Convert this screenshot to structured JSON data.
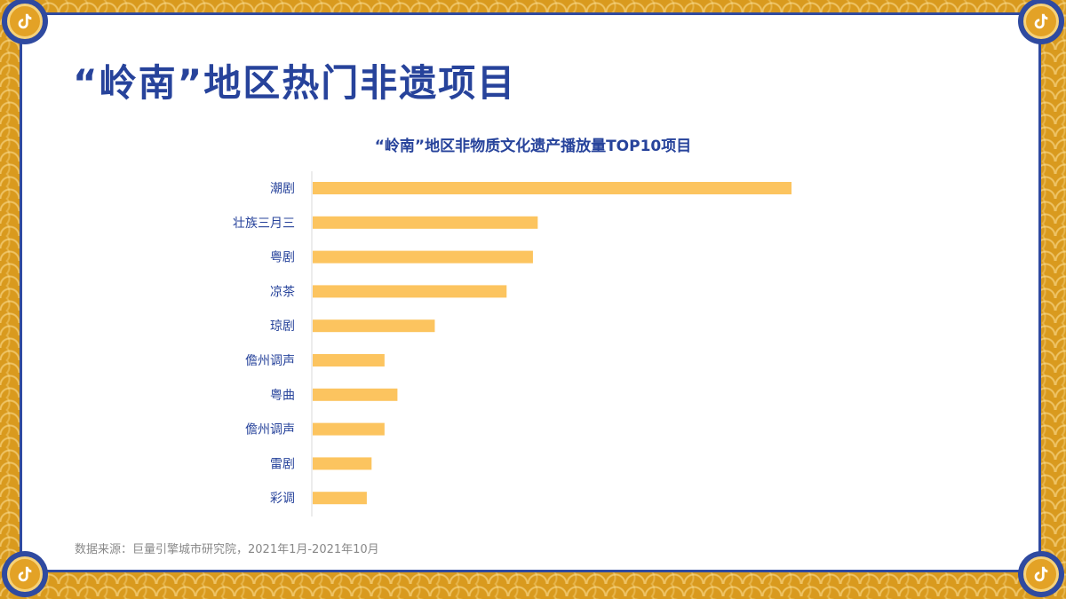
{
  "title": "“岭南”地区热门非遗项目",
  "chart_data": {
    "type": "bar",
    "orientation": "horizontal",
    "title": "“岭南”地区非物质文化遗产播放量TOP10项目",
    "categories": [
      "潮剧",
      "壮族三月三",
      "粤剧",
      "凉茶",
      "琼剧",
      "儋州调声",
      "粤曲",
      "儋州调声",
      "雷剧",
      "彩调"
    ],
    "values": [
      100,
      47,
      46,
      40.5,
      25.5,
      15,
      17.7,
      15,
      12.3,
      11.3
    ],
    "xlim": [
      0,
      100
    ],
    "bar_color": "#fcc45f",
    "axis_color": "#d9d9d9",
    "label_color": "#27439b",
    "grid": false,
    "legend": "none"
  },
  "source": "数据来源：巨量引擎城市研究院，2021年1月-2021年10月",
  "icons": [
    "tiktok-icon"
  ]
}
